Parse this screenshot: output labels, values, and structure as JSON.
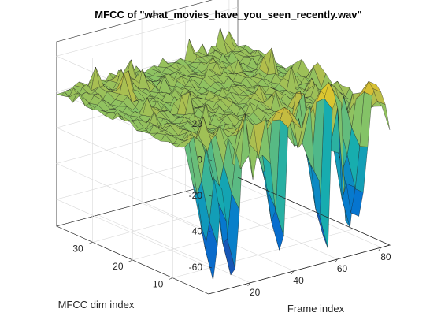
{
  "chart_data": {
    "type": "surface",
    "title": "MFCC of \"what_movies_have_you_seen_recently.wav\"",
    "xlabel": "Frame index",
    "ylabel": "MFCC dim index",
    "zlabel": "",
    "xlim": [
      1,
      84
    ],
    "ylim": [
      1,
      39
    ],
    "zlim": [
      -75,
      28
    ],
    "x_ticks": [
      20,
      40,
      60,
      80
    ],
    "y_ticks": [
      10,
      20,
      30
    ],
    "z_ticks": [
      20,
      0,
      -20,
      -40,
      -60
    ],
    "colormap": "parula",
    "grid": true,
    "surface_summary": {
      "baseline_high_dims": 0,
      "low_dim_range": [
        -75,
        25
      ],
      "deep_troughs": [
        {
          "frame": 3,
          "dim": 1,
          "value": -68
        },
        {
          "frame": 12,
          "dim": 1,
          "value": -72
        },
        {
          "frame": 34,
          "dim": 1,
          "value": -63
        },
        {
          "frame": 55,
          "dim": 1,
          "value": -70
        },
        {
          "frame": 65,
          "dim": 1,
          "value": -62
        },
        {
          "frame": 70,
          "dim": 2,
          "value": -58
        }
      ],
      "peaks": [
        {
          "frame": 60,
          "dim": 3,
          "value": 22
        },
        {
          "frame": 78,
          "dim": 2,
          "value": 18
        },
        {
          "frame": 40,
          "dim": 3,
          "value": 15
        }
      ]
    }
  }
}
